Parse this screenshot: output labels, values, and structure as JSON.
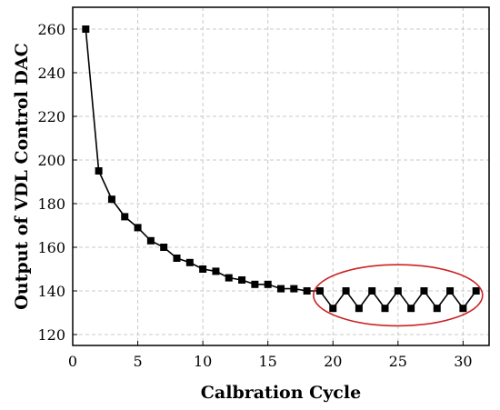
{
  "chart_data": {
    "type": "line",
    "xlabel": "Calbration  Cycle",
    "ylabel": "Output of VDL Control DAC",
    "xlim": [
      0,
      32
    ],
    "ylim": [
      115,
      270
    ],
    "xticks": [
      "0",
      "5",
      "10",
      "15",
      "20",
      "25",
      "30"
    ],
    "yticks": [
      "120",
      "140",
      "160",
      "180",
      "200",
      "220",
      "240",
      "260"
    ],
    "grid": true,
    "marker": "square",
    "line_color": "#000000",
    "highlight": {
      "shape": "ellipse",
      "color": "#cc2222",
      "x_range": [
        18.5,
        31.5
      ],
      "y_range": [
        124,
        152
      ]
    },
    "series": [
      {
        "x": [
          1,
          2,
          3,
          4,
          5,
          6,
          7,
          8,
          9,
          10,
          11,
          12,
          13,
          14,
          15,
          16,
          17,
          18,
          19,
          20,
          21,
          22,
          23,
          24,
          25,
          26,
          27,
          28,
          29,
          30,
          31
        ],
        "values": [
          260,
          195,
          182,
          174,
          169,
          163,
          160,
          155,
          153,
          150,
          149,
          146,
          145,
          143,
          143,
          141,
          141,
          140,
          140,
          132,
          140,
          132,
          140,
          132,
          140,
          132,
          140,
          132,
          140,
          132,
          140
        ]
      }
    ]
  }
}
